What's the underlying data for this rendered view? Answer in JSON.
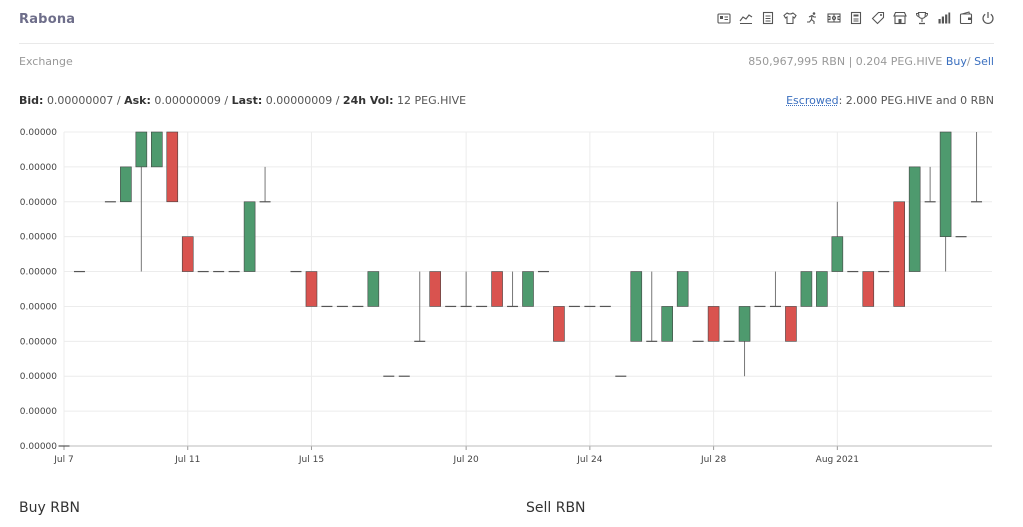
{
  "app": {
    "title": "Rabona"
  },
  "nav_icons": [
    "id-card-icon",
    "trend-line-icon",
    "document-icon",
    "shirt-icon",
    "running-icon",
    "stadium-icon",
    "report-icon",
    "tag-icon",
    "market-icon",
    "trophy-icon",
    "bar-chart-icon",
    "wallet-icon",
    "power-icon"
  ],
  "exchange": {
    "label": "Exchange",
    "balance": "850,967,995 RBN | 0.204 PEG.HIVE",
    "buy_link": "Buy",
    "sell_link": "Sell",
    "separator": "/"
  },
  "stats": {
    "bid_label": "Bid:",
    "bid": "0.00000007",
    "ask_label": "Ask:",
    "ask": "0.00000009",
    "last_label": "Last:",
    "last": "0.00000009",
    "vol_label": "24h Vol:",
    "vol": "12 PEG.HIVE",
    "sep": " / "
  },
  "escrow": {
    "label": "Escrowed",
    "value": ": 2.000 PEG.HIVE and 0 RBN"
  },
  "panels": {
    "buy_title": "Buy RBN",
    "sell_title": "Sell RBN"
  },
  "chart_data": {
    "type": "candlestick",
    "y_tick_labels": [
      "0.00000",
      "0.00000",
      "0.00000",
      "0.00000",
      "0.00000",
      "0.00000",
      "0.00000",
      "0.00000",
      "0.00000",
      "0.00000"
    ],
    "x_ticks": [
      {
        "label": "Jul 7",
        "day": 0
      },
      {
        "label": "Jul 11",
        "day": 4
      },
      {
        "label": "Jul 15",
        "day": 8
      },
      {
        "label": "Jul 20",
        "day": 13
      },
      {
        "label": "Jul 24",
        "day": 17
      },
      {
        "label": "Jul 28",
        "day": 21
      },
      {
        "label": "Aug 2021",
        "day": 25
      }
    ],
    "ylim": [
      0,
      9
    ],
    "up_color": "#4e9a6e",
    "down_color": "#d9534f",
    "flat_color": "#555555",
    "candles": [
      {
        "day": 0,
        "open": 0,
        "close": 0,
        "high": 0,
        "low": 0
      },
      {
        "day": 0.5,
        "open": 5,
        "close": 5,
        "high": 5,
        "low": 5
      },
      {
        "day": 1.5,
        "open": 7,
        "close": 7,
        "high": 7,
        "low": 7
      },
      {
        "day": 2.0,
        "open": 7,
        "close": 8,
        "high": 8,
        "low": 7
      },
      {
        "day": 2.5,
        "open": 8,
        "close": 9,
        "high": 9,
        "low": 5
      },
      {
        "day": 3.0,
        "open": 8,
        "close": 9,
        "high": 9,
        "low": 8
      },
      {
        "day": 3.5,
        "open": 9,
        "close": 7,
        "high": 9,
        "low": 7
      },
      {
        "day": 4.0,
        "open": 6,
        "close": 5,
        "high": 6,
        "low": 5
      },
      {
        "day": 4.5,
        "open": 5,
        "close": 5,
        "high": 5,
        "low": 5
      },
      {
        "day": 5.0,
        "open": 5,
        "close": 5,
        "high": 5,
        "low": 5
      },
      {
        "day": 5.5,
        "open": 5,
        "close": 5,
        "high": 5,
        "low": 5
      },
      {
        "day": 6.0,
        "open": 5,
        "close": 7,
        "high": 7,
        "low": 5
      },
      {
        "day": 6.5,
        "open": 7,
        "close": 7,
        "high": 8,
        "low": 7
      },
      {
        "day": 7.5,
        "open": 5,
        "close": 5,
        "high": 5,
        "low": 5
      },
      {
        "day": 8.0,
        "open": 5,
        "close": 4,
        "high": 5,
        "low": 4
      },
      {
        "day": 8.5,
        "open": 4,
        "close": 4,
        "high": 4,
        "low": 4
      },
      {
        "day": 9.0,
        "open": 4,
        "close": 4,
        "high": 4,
        "low": 4
      },
      {
        "day": 9.5,
        "open": 4,
        "close": 4,
        "high": 4,
        "low": 4
      },
      {
        "day": 10.0,
        "open": 4,
        "close": 5,
        "high": 5,
        "low": 4
      },
      {
        "day": 10.5,
        "open": 2,
        "close": 2,
        "high": 2,
        "low": 2
      },
      {
        "day": 11.0,
        "open": 2,
        "close": 2,
        "high": 2,
        "low": 2
      },
      {
        "day": 11.5,
        "open": 3,
        "close": 3,
        "high": 5,
        "low": 3
      },
      {
        "day": 12.0,
        "open": 5,
        "close": 4,
        "high": 5,
        "low": 4
      },
      {
        "day": 12.5,
        "open": 4,
        "close": 4,
        "high": 4,
        "low": 4
      },
      {
        "day": 13.0,
        "open": 4,
        "close": 4,
        "high": 5,
        "low": 4
      },
      {
        "day": 13.5,
        "open": 4,
        "close": 4,
        "high": 4,
        "low": 4
      },
      {
        "day": 14.0,
        "open": 5,
        "close": 4,
        "high": 5,
        "low": 4
      },
      {
        "day": 14.5,
        "open": 4,
        "close": 4,
        "high": 5,
        "low": 4
      },
      {
        "day": 15.0,
        "open": 4,
        "close": 5,
        "high": 5,
        "low": 4
      },
      {
        "day": 15.5,
        "open": 5,
        "close": 5,
        "high": 5,
        "low": 5
      },
      {
        "day": 16.0,
        "open": 4,
        "close": 3,
        "high": 4,
        "low": 3
      },
      {
        "day": 16.5,
        "open": 4,
        "close": 4,
        "high": 4,
        "low": 4
      },
      {
        "day": 17.0,
        "open": 4,
        "close": 4,
        "high": 4,
        "low": 4
      },
      {
        "day": 17.5,
        "open": 4,
        "close": 4,
        "high": 4,
        "low": 4
      },
      {
        "day": 18.0,
        "open": 2,
        "close": 2,
        "high": 2,
        "low": 2
      },
      {
        "day": 18.5,
        "open": 3,
        "close": 5,
        "high": 5,
        "low": 3
      },
      {
        "day": 19.0,
        "open": 3,
        "close": 3,
        "high": 5,
        "low": 3
      },
      {
        "day": 19.5,
        "open": 3,
        "close": 4,
        "high": 4,
        "low": 3
      },
      {
        "day": 20.0,
        "open": 4,
        "close": 5,
        "high": 5,
        "low": 4
      },
      {
        "day": 20.5,
        "open": 3,
        "close": 3,
        "high": 3,
        "low": 3
      },
      {
        "day": 21.0,
        "open": 4,
        "close": 3,
        "high": 4,
        "low": 3
      },
      {
        "day": 21.5,
        "open": 3,
        "close": 3,
        "high": 3,
        "low": 3
      },
      {
        "day": 22.0,
        "open": 3,
        "close": 4,
        "high": 4,
        "low": 2
      },
      {
        "day": 22.5,
        "open": 4,
        "close": 4,
        "high": 4,
        "low": 4
      },
      {
        "day": 23.0,
        "open": 4,
        "close": 4,
        "high": 5,
        "low": 4
      },
      {
        "day": 23.5,
        "open": 4,
        "close": 3,
        "high": 4,
        "low": 3
      },
      {
        "day": 24.0,
        "open": 4,
        "close": 5,
        "high": 5,
        "low": 4
      },
      {
        "day": 24.5,
        "open": 4,
        "close": 5,
        "high": 5,
        "low": 4
      },
      {
        "day": 25.0,
        "open": 5,
        "close": 6,
        "high": 7,
        "low": 5
      },
      {
        "day": 25.5,
        "open": 5,
        "close": 5,
        "high": 5,
        "low": 5
      },
      {
        "day": 26.0,
        "open": 5,
        "close": 4,
        "high": 5,
        "low": 4
      },
      {
        "day": 26.5,
        "open": 5,
        "close": 5,
        "high": 5,
        "low": 5
      },
      {
        "day": 27.0,
        "open": 7,
        "close": 4,
        "high": 7,
        "low": 4
      },
      {
        "day": 27.5,
        "open": 5,
        "close": 8,
        "high": 8,
        "low": 5
      },
      {
        "day": 28.0,
        "open": 7,
        "close": 7,
        "high": 8,
        "low": 7
      },
      {
        "day": 28.5,
        "open": 6,
        "close": 9,
        "high": 9,
        "low": 5
      },
      {
        "day": 29.0,
        "open": 6,
        "close": 6,
        "high": 6,
        "low": 6
      },
      {
        "day": 29.5,
        "open": 7,
        "close": 7,
        "high": 9,
        "low": 7
      }
    ]
  }
}
